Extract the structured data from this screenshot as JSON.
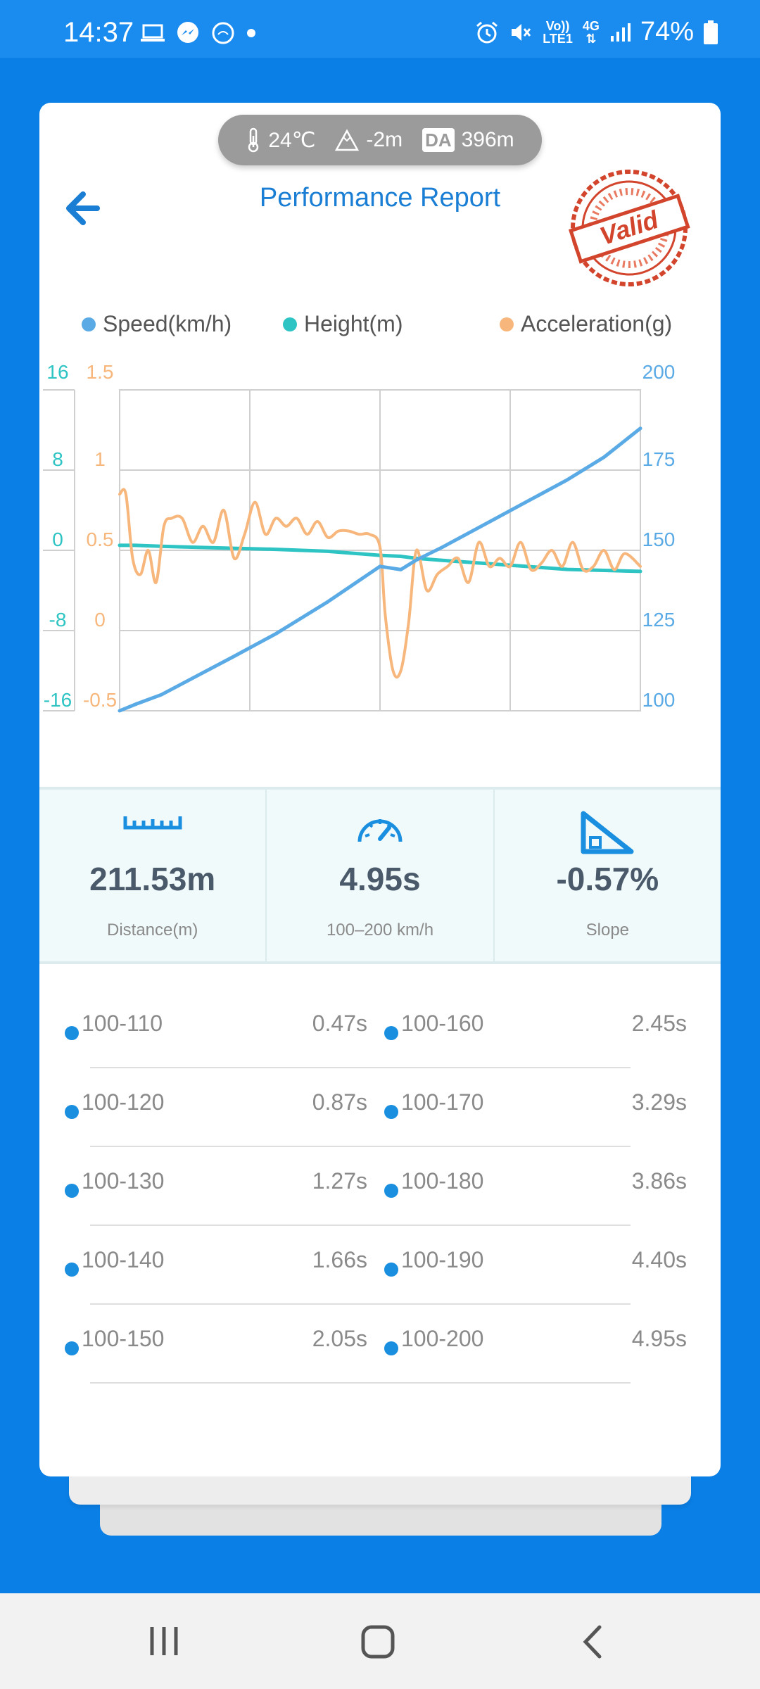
{
  "status_bar": {
    "time": "14:37",
    "battery": "74%",
    "volte_line1": "Vo))",
    "volte_line2": "LTE1",
    "network": "4G"
  },
  "environment": {
    "temperature": "24℃",
    "altitude": "-2m",
    "density_altitude_label": "DA",
    "density_altitude": "396m"
  },
  "header": {
    "title": "Performance Report",
    "stamp": "Valid"
  },
  "chart_data": {
    "type": "line",
    "legend": [
      "Speed(km/h)",
      "Height(m)",
      "Acceleration(g)"
    ],
    "colors": {
      "speed": "#5aaae6",
      "height": "#2ec4c4",
      "acceleration": "#f7b77c"
    },
    "grid": true,
    "axes": {
      "height_left": {
        "ticks": [
          "16",
          "8",
          "0",
          "-8",
          "-16"
        ],
        "range": [
          -16,
          16
        ]
      },
      "acceleration_left": {
        "ticks": [
          "1.5",
          "1",
          "0.5",
          "0",
          "-0.5"
        ],
        "range": [
          -0.5,
          1.5
        ]
      },
      "speed_right": {
        "ticks": [
          "200",
          "175",
          "150",
          "125",
          "100"
        ],
        "range": [
          100,
          200
        ]
      }
    },
    "x": [
      0,
      0.03,
      0.08,
      0.15,
      0.22,
      0.3,
      0.4,
      0.5,
      0.54,
      0.57,
      0.62,
      0.7,
      0.78,
      0.86,
      0.93,
      1.0
    ],
    "series": [
      {
        "name": "Speed(km/h)",
        "axis": "speed_right",
        "values": [
          100,
          102,
          105,
          111,
          117,
          124,
          134,
          145,
          144,
          147,
          151,
          158,
          165,
          172,
          179,
          188
        ]
      },
      {
        "name": "Height(m)",
        "axis": "height_left",
        "values": [
          0.5,
          0.5,
          0.4,
          0.3,
          0.2,
          0.1,
          -0.1,
          -0.5,
          -0.6,
          -0.8,
          -1.0,
          -1.3,
          -1.6,
          -1.9,
          -2.0,
          -2.1
        ]
      },
      {
        "name": "Acceleration(g)",
        "axis": "acceleration_left",
        "x": [
          0,
          0.012,
          0.025,
          0.04,
          0.055,
          0.07,
          0.085,
          0.1,
          0.12,
          0.14,
          0.16,
          0.18,
          0.2,
          0.22,
          0.24,
          0.26,
          0.28,
          0.3,
          0.32,
          0.34,
          0.36,
          0.38,
          0.4,
          0.42,
          0.44,
          0.46,
          0.48,
          0.5,
          0.51,
          0.525,
          0.54,
          0.555,
          0.57,
          0.59,
          0.61,
          0.63,
          0.65,
          0.67,
          0.69,
          0.71,
          0.73,
          0.75,
          0.77,
          0.79,
          0.81,
          0.83,
          0.85,
          0.87,
          0.89,
          0.91,
          0.93,
          0.95,
          0.97,
          1.0
        ],
        "values": [
          0.85,
          0.85,
          0.45,
          0.35,
          0.5,
          0.3,
          0.65,
          0.7,
          0.7,
          0.55,
          0.65,
          0.55,
          0.75,
          0.45,
          0.6,
          0.8,
          0.6,
          0.7,
          0.65,
          0.7,
          0.6,
          0.68,
          0.58,
          0.62,
          0.62,
          0.6,
          0.6,
          0.52,
          0.1,
          -0.25,
          -0.25,
          0.05,
          0.5,
          0.25,
          0.35,
          0.4,
          0.45,
          0.3,
          0.55,
          0.4,
          0.45,
          0.4,
          0.55,
          0.38,
          0.42,
          0.5,
          0.4,
          0.55,
          0.38,
          0.4,
          0.5,
          0.38,
          0.48,
          0.4
        ]
      }
    ]
  },
  "stats": [
    {
      "value": "211.53m",
      "label": "Distance(m)",
      "icon": "ruler-icon"
    },
    {
      "value": "4.95s",
      "label": "100–200 km/h",
      "icon": "speedometer-icon"
    },
    {
      "value": "-0.57%",
      "label": "Slope",
      "icon": "slope-icon"
    }
  ],
  "splits": [
    {
      "left": {
        "range": "100-110",
        "time": "0.47s"
      },
      "right": {
        "range": "100-160",
        "time": "2.45s"
      }
    },
    {
      "left": {
        "range": "100-120",
        "time": "0.87s"
      },
      "right": {
        "range": "100-170",
        "time": "3.29s"
      }
    },
    {
      "left": {
        "range": "100-130",
        "time": "1.27s"
      },
      "right": {
        "range": "100-180",
        "time": "3.86s"
      }
    },
    {
      "left": {
        "range": "100-140",
        "time": "1.66s"
      },
      "right": {
        "range": "100-190",
        "time": "4.40s"
      }
    },
    {
      "left": {
        "range": "100-150",
        "time": "2.05s"
      },
      "right": {
        "range": "100-200",
        "time": "4.95s"
      }
    }
  ]
}
